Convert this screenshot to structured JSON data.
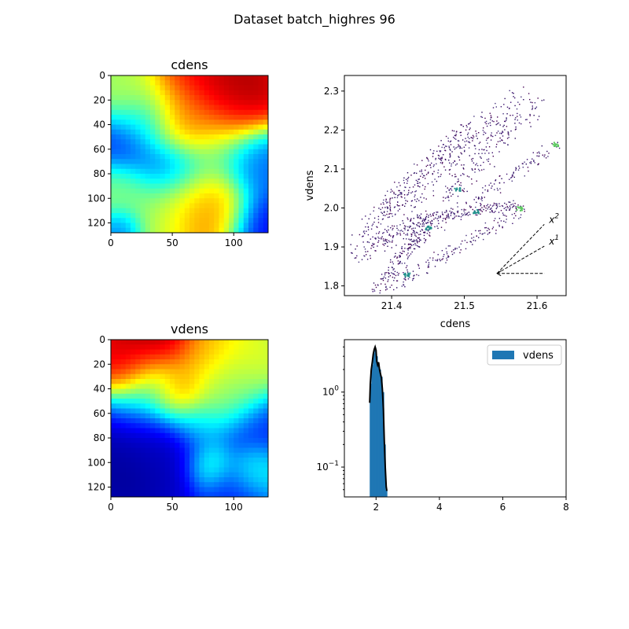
{
  "figure": {
    "suptitle": "Dataset batch_highres 96"
  },
  "chart_data": [
    {
      "type": "heatmap",
      "title": "cdens",
      "colormap": "jet",
      "size": [
        128,
        128
      ],
      "xlim": [
        0,
        128
      ],
      "ylim": [
        128,
        0
      ],
      "xticks": [
        0,
        50,
        100
      ],
      "yticks": [
        0,
        20,
        40,
        60,
        80,
        100,
        120
      ],
      "hotspots": [
        {
          "x": 98,
          "y": 12,
          "r": 22,
          "v": 1.0
        },
        {
          "x": 72,
          "y": 18,
          "r": 22,
          "v": 0.9
        },
        {
          "x": 60,
          "y": 42,
          "r": 14,
          "v": 0.85
        },
        {
          "x": 48,
          "y": 34,
          "r": 18,
          "v": 0.6
        },
        {
          "x": 15,
          "y": 20,
          "r": 16,
          "v": 0.55
        },
        {
          "x": 70,
          "y": 110,
          "r": 22,
          "v": 0.8
        },
        {
          "x": 88,
          "y": 110,
          "r": 14,
          "v": 0.72
        },
        {
          "x": 40,
          "y": 110,
          "r": 22,
          "v": 0.5
        },
        {
          "x": 75,
          "y": 65,
          "r": 26,
          "v": 0.45
        },
        {
          "x": 5,
          "y": 95,
          "r": 16,
          "v": 0.5
        },
        {
          "x": 45,
          "y": 72,
          "r": 16,
          "v": 0.12
        },
        {
          "x": 10,
          "y": 55,
          "r": 16,
          "v": 0.15
        },
        {
          "x": 118,
          "y": 120,
          "r": 16,
          "v": 0.1
        },
        {
          "x": 120,
          "y": 75,
          "r": 16,
          "v": 0.2
        },
        {
          "x": 8,
          "y": 125,
          "r": 10,
          "v": 0.2
        },
        {
          "x": 30,
          "y": 40,
          "r": 14,
          "v": 0.3
        }
      ]
    },
    {
      "type": "scatter",
      "xlabel": "cdens",
      "ylabel": "vdens",
      "xlim": [
        21.335,
        21.64
      ],
      "ylim": [
        1.775,
        2.34
      ],
      "xticks": [
        21.4,
        21.5,
        21.6
      ],
      "yticks": [
        1.8,
        1.9,
        2.0,
        2.1,
        2.2,
        2.3
      ],
      "bands": [
        {
          "x0": 21.37,
          "y0": 1.95,
          "x1": 21.5,
          "y1": 2.21,
          "w": 0.03
        },
        {
          "x0": 21.36,
          "y0": 1.93,
          "x1": 21.56,
          "y1": 2.23,
          "w": 0.035
        },
        {
          "x0": 21.38,
          "y0": 1.99,
          "x1": 21.58,
          "y1": 2.3,
          "w": 0.03
        },
        {
          "x0": 21.4,
          "y0": 1.8,
          "x1": 21.58,
          "y1": 2.0,
          "w": 0.02
        },
        {
          "x0": 21.42,
          "y0": 1.9,
          "x1": 21.63,
          "y1": 2.17,
          "w": 0.02
        },
        {
          "x0": 21.43,
          "y0": 1.97,
          "x1": 21.57,
          "y1": 2.01,
          "w": 0.015
        },
        {
          "x0": 21.35,
          "y0": 1.88,
          "x1": 21.45,
          "y1": 1.98,
          "w": 0.025
        },
        {
          "x0": 21.47,
          "y0": 2.02,
          "x1": 21.6,
          "y1": 2.27,
          "w": 0.03
        },
        {
          "x0": 21.38,
          "y0": 1.79,
          "x1": 21.45,
          "y1": 1.96,
          "w": 0.02
        }
      ],
      "dense_spots": [
        {
          "x": 21.575,
          "y": 2.0
        },
        {
          "x": 21.625,
          "y": 2.165
        },
        {
          "x": 21.515,
          "y": 1.992
        },
        {
          "x": 21.45,
          "y": 1.95
        },
        {
          "x": 21.42,
          "y": 1.83
        },
        {
          "x": 21.49,
          "y": 2.05
        }
      ],
      "guides": {
        "origin": {
          "x": 21.545,
          "y": 1.832
        },
        "lines": [
          {
            "to": {
              "x": 21.61,
              "y": 1.832
            },
            "label": ""
          },
          {
            "to": {
              "x": 21.61,
              "y": 1.902
            },
            "label": "x^1"
          },
          {
            "to": {
              "x": 21.61,
              "y": 1.958
            },
            "label": "x^2"
          }
        ]
      }
    },
    {
      "type": "heatmap",
      "title": "vdens",
      "colormap": "jet",
      "size": [
        128,
        128
      ],
      "xlim": [
        0,
        128
      ],
      "ylim": [
        128,
        0
      ],
      "xticks": [
        0,
        50,
        100
      ],
      "yticks": [
        0,
        20,
        40,
        60,
        80,
        100,
        120
      ],
      "hotspots": [
        {
          "x": 35,
          "y": 3,
          "r": 20,
          "v": 1.0
        },
        {
          "x": 10,
          "y": 20,
          "r": 14,
          "v": 0.95
        },
        {
          "x": 55,
          "y": 48,
          "r": 14,
          "v": 0.95
        },
        {
          "x": 80,
          "y": 15,
          "r": 18,
          "v": 0.7
        },
        {
          "x": 110,
          "y": 20,
          "r": 16,
          "v": 0.6
        },
        {
          "x": 90,
          "y": 52,
          "r": 16,
          "v": 0.6
        },
        {
          "x": 30,
          "y": 40,
          "r": 18,
          "v": 0.55
        },
        {
          "x": 100,
          "y": 35,
          "r": 14,
          "v": 0.5
        },
        {
          "x": 15,
          "y": 102,
          "r": 24,
          "v": 0.0
        },
        {
          "x": 50,
          "y": 95,
          "r": 20,
          "v": 0.05
        },
        {
          "x": 40,
          "y": 72,
          "r": 26,
          "v": 0.1
        },
        {
          "x": 110,
          "y": 75,
          "r": 20,
          "v": 0.15
        },
        {
          "x": 100,
          "y": 120,
          "r": 16,
          "v": 0.15
        },
        {
          "x": 80,
          "y": 100,
          "r": 12,
          "v": 0.55
        },
        {
          "x": 115,
          "y": 105,
          "r": 12,
          "v": 0.45
        },
        {
          "x": 70,
          "y": 70,
          "r": 12,
          "v": 0.4
        }
      ]
    },
    {
      "type": "bar",
      "yscale": "log",
      "xlim": [
        1,
        8
      ],
      "ylim": [
        0.04,
        5.0
      ],
      "xticks": [
        2,
        4,
        6,
        8
      ],
      "yticks": [
        {
          "v": 0.1,
          "label": "10^-1"
        },
        {
          "v": 1,
          "label": "10^0"
        }
      ],
      "legend": {
        "label": "vdens",
        "loc": "upper-right"
      },
      "bar_color": "#1f77b4",
      "bins": [
        {
          "x0": 1.8,
          "x1": 1.85,
          "v": 1.3
        },
        {
          "x0": 1.85,
          "x1": 1.9,
          "v": 2.3
        },
        {
          "x0": 1.9,
          "x1": 1.95,
          "v": 3.3
        },
        {
          "x0": 1.95,
          "x1": 2.0,
          "v": 3.9
        },
        {
          "x0": 2.0,
          "x1": 2.05,
          "v": 3.0
        },
        {
          "x0": 2.05,
          "x1": 2.1,
          "v": 2.4
        },
        {
          "x0": 2.1,
          "x1": 2.15,
          "v": 2.0
        },
        {
          "x0": 2.15,
          "x1": 2.2,
          "v": 1.6
        },
        {
          "x0": 2.2,
          "x1": 2.25,
          "v": 1.0
        },
        {
          "x0": 2.25,
          "x1": 2.3,
          "v": 0.2
        },
        {
          "x0": 2.3,
          "x1": 2.35,
          "v": 0.05
        }
      ],
      "kde": [
        [
          1.8,
          0.72
        ],
        [
          1.82,
          1.3
        ],
        [
          1.85,
          2.0
        ],
        [
          1.88,
          2.5
        ],
        [
          1.91,
          3.2
        ],
        [
          1.94,
          3.7
        ],
        [
          1.97,
          4.0
        ],
        [
          2.0,
          3.6
        ],
        [
          2.02,
          2.6
        ],
        [
          2.05,
          2.3
        ],
        [
          2.08,
          2.5
        ],
        [
          2.11,
          2.0
        ],
        [
          2.14,
          1.75
        ],
        [
          2.17,
          1.55
        ],
        [
          2.2,
          1.1
        ],
        [
          2.23,
          0.6
        ],
        [
          2.26,
          0.22
        ],
        [
          2.29,
          0.1
        ],
        [
          2.32,
          0.055
        ],
        [
          2.34,
          0.048
        ]
      ]
    }
  ]
}
